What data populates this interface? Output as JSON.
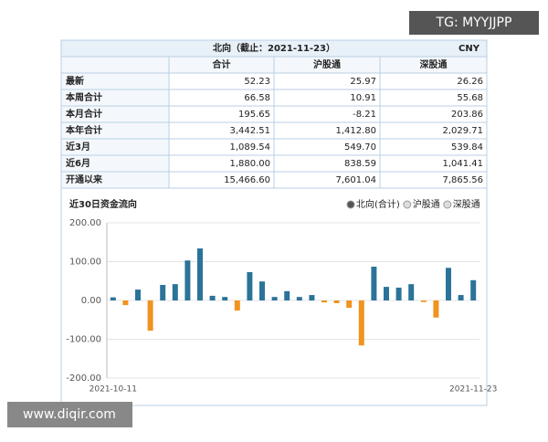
{
  "watermark_top": "TG: MYYJJPP",
  "watermark_bottom": "www.diqir.com",
  "table": {
    "title": "北向（截止：2021-11-23）",
    "currency": "CNY",
    "columns": [
      "合计",
      "沪股通",
      "深股通"
    ],
    "rows": [
      [
        "最新",
        "52.23",
        "25.97",
        "26.26"
      ],
      [
        "本周合计",
        "66.58",
        "10.91",
        "55.68"
      ],
      [
        "本月合计",
        "195.65",
        "-8.21",
        "203.86"
      ],
      [
        "本年合计",
        "3,442.51",
        "1,412.80",
        "2,029.71"
      ],
      [
        "近3月",
        "1,089.54",
        "549.70",
        "539.84"
      ],
      [
        "近6月",
        "1,880.00",
        "838.59",
        "1,041.41"
      ],
      [
        "开通以来",
        "15,466.60",
        "7,601.04",
        "7,865.56"
      ]
    ]
  },
  "chart_data": {
    "type": "bar",
    "title": "近30日资金流向",
    "legend": [
      "北向(合计)",
      "沪股通",
      "深股通"
    ],
    "legend_selected": 0,
    "categories": [
      "2021-10-11",
      null,
      null,
      null,
      null,
      null,
      null,
      null,
      null,
      null,
      null,
      null,
      null,
      null,
      null,
      null,
      null,
      null,
      null,
      null,
      null,
      null,
      null,
      null,
      null,
      null,
      null,
      null,
      null,
      "2021-11-23"
    ],
    "values": [
      8,
      -12,
      28,
      -78,
      40,
      42,
      103,
      134,
      12,
      9,
      -26,
      73,
      49,
      9,
      24,
      9,
      14,
      -5,
      -7,
      -19,
      -116,
      87,
      35,
      33,
      42,
      -4,
      -44,
      84,
      14,
      52.23
    ],
    "color": "#2b7399",
    "negative_color": "#f0931f",
    "ylim": [
      -200,
      200
    ],
    "yticks": [
      {
        "value": -200,
        "label": "-200.00"
      },
      {
        "value": -100,
        "label": "-100.00"
      },
      {
        "value": 0,
        "label": "0.00"
      },
      {
        "value": 100,
        "label": "100.00"
      },
      {
        "value": 200,
        "label": "200.00"
      }
    ],
    "grid": true
  }
}
